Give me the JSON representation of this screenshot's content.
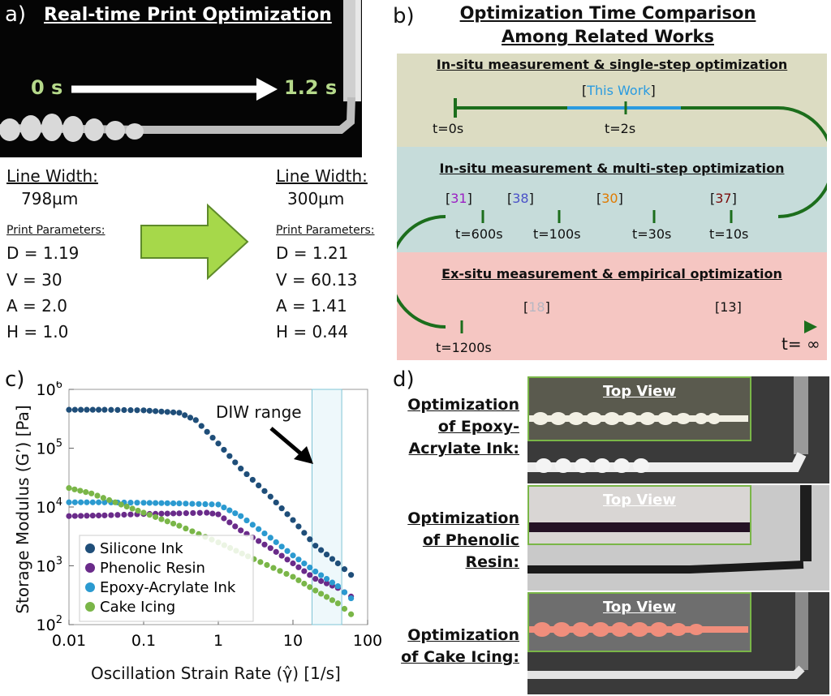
{
  "panel_a": {
    "label": "a)",
    "title": "Real-time Print Optimization",
    "time_start": "0 s",
    "time_end": "1.2 s",
    "before": {
      "line_width_label": "Line Width:",
      "line_width_value": "798µm",
      "params_label": "Print Parameters:",
      "params": [
        "D = 1.19",
        "V = 30",
        "A = 2.0",
        "H = 1.0"
      ]
    },
    "after": {
      "line_width_label": "Line Width:",
      "line_width_value": "300µm",
      "params_label": "Print Parameters:",
      "params": [
        "D = 1.21",
        "V = 60.13",
        "A = 1.41",
        "H = 0.44"
      ]
    },
    "arrow_color": "#a6d84a"
  },
  "panel_b": {
    "label": "b)",
    "title_line1": "Optimization Time Comparison",
    "title_line2": "Among Related Works",
    "band1_title": "In-situ measurement & single-step optimization",
    "band2_title": "In-situ measurement & multi-step optimization",
    "band3_title": "Ex-situ measurement & empirical optimization",
    "this_work_open": "[",
    "this_work_text": "This Work",
    "this_work_close": "]",
    "ticks": {
      "t0": "t=0s",
      "t2": "t=2s",
      "t600": "t=600s",
      "t100": "t=100s",
      "t30": "t=30s",
      "t10": "t=10s",
      "t1200": "t=1200s",
      "tinf": "t= ∞"
    },
    "refs": [
      {
        "open": "[",
        "num": "31",
        "close": "]",
        "color": "#9b1fc4"
      },
      {
        "open": "[",
        "num": "38",
        "close": "]",
        "color": "#4b52c8"
      },
      {
        "open": "[",
        "num": "30",
        "close": "]",
        "color": "#e07a00"
      },
      {
        "open": "[",
        "num": "37",
        "close": "]",
        "color": "#7a0c0c"
      },
      {
        "open": "[",
        "num": "18",
        "close": "]",
        "color": "#b7b7c2"
      },
      {
        "open": "[",
        "num": "13",
        "close": "]",
        "color": "#111111"
      }
    ],
    "colors": {
      "timeline": "#1c6e1c",
      "this_work": "#2a9be0"
    }
  },
  "panel_c": {
    "label": "c)",
    "annotation": "DIW range",
    "chart_data": {
      "type": "scatter",
      "xlabel": "Oscillation Strain Rate (γ̂) [1/s]",
      "ylabel": "Storage Modulus (G’) [Pa]",
      "xscale": "log",
      "yscale": "log",
      "xlim": [
        0.01,
        100
      ],
      "ylim": [
        100,
        1000000
      ],
      "xticks": [
        {
          "v": 0.01,
          "label": "0.01"
        },
        {
          "v": 0.1,
          "label": "0.1"
        },
        {
          "v": 1,
          "label": "1"
        },
        {
          "v": 10,
          "label": "10"
        },
        {
          "v": 100,
          "label": "100"
        }
      ],
      "yticks": [
        {
          "v": 100,
          "base": "10",
          "exp": "2"
        },
        {
          "v": 1000,
          "base": "10",
          "exp": "3"
        },
        {
          "v": 10000,
          "base": "10",
          "exp": "4"
        },
        {
          "v": 100000,
          "base": "10",
          "exp": "5"
        },
        {
          "v": 1000000,
          "base": "10",
          "exp": "6"
        }
      ],
      "diw_range": [
        18,
        45
      ],
      "legend_position": "bottom-left",
      "series": [
        {
          "name": "Silicone Ink",
          "color": "#1f4e79",
          "points": [
            [
              0.01,
              450000
            ],
            [
              0.03,
              450000
            ],
            [
              0.1,
              440000
            ],
            [
              0.3,
              400000
            ],
            [
              0.5,
              300000
            ],
            [
              1,
              120000
            ],
            [
              2,
              45000
            ],
            [
              5,
              15000
            ],
            [
              10,
              6000
            ],
            [
              20,
              2200
            ],
            [
              40,
              1100
            ],
            [
              60,
              700
            ]
          ]
        },
        {
          "name": "Phenolic Resin",
          "color": "#6a2b8a",
          "points": [
            [
              0.01,
              7000
            ],
            [
              0.03,
              7200
            ],
            [
              0.1,
              7600
            ],
            [
              0.3,
              7800
            ],
            [
              0.7,
              8000
            ],
            [
              1,
              7500
            ],
            [
              2,
              4000
            ],
            [
              5,
              2000
            ],
            [
              10,
              1100
            ],
            [
              20,
              600
            ],
            [
              40,
              420
            ],
            [
              60,
              300
            ]
          ]
        },
        {
          "name": "Epoxy-Acrylate Ink",
          "color": "#2b9ad0",
          "points": [
            [
              0.01,
              12000
            ],
            [
              0.03,
              12000
            ],
            [
              0.1,
              11800
            ],
            [
              0.3,
              11500
            ],
            [
              1,
              11000
            ],
            [
              2,
              7000
            ],
            [
              5,
              3000
            ],
            [
              10,
              1500
            ],
            [
              20,
              800
            ],
            [
              40,
              450
            ],
            [
              60,
              280
            ]
          ]
        },
        {
          "name": "Cake Icing",
          "color": "#7ab648",
          "points": [
            [
              0.01,
              21000
            ],
            [
              0.02,
              17000
            ],
            [
              0.05,
              11000
            ],
            [
              0.1,
              8000
            ],
            [
              0.3,
              4800
            ],
            [
              1,
              2500
            ],
            [
              3,
              1300
            ],
            [
              10,
              650
            ],
            [
              20,
              380
            ],
            [
              40,
              230
            ],
            [
              60,
              150
            ]
          ]
        }
      ]
    }
  },
  "panel_d": {
    "label": "d)",
    "top_view": "Top View",
    "rows": [
      {
        "lines": [
          "Optimization",
          "of Epoxy-",
          "Acrylate Ink:"
        ],
        "strand_color": "#f2f0e4"
      },
      {
        "lines": [
          "Optimization",
          "of Phenolic",
          "Resin:"
        ],
        "strand_color": "#241224"
      },
      {
        "lines": [
          "Optimization",
          "of Cake Icing:"
        ],
        "strand_color": "#f08e7c"
      }
    ]
  }
}
